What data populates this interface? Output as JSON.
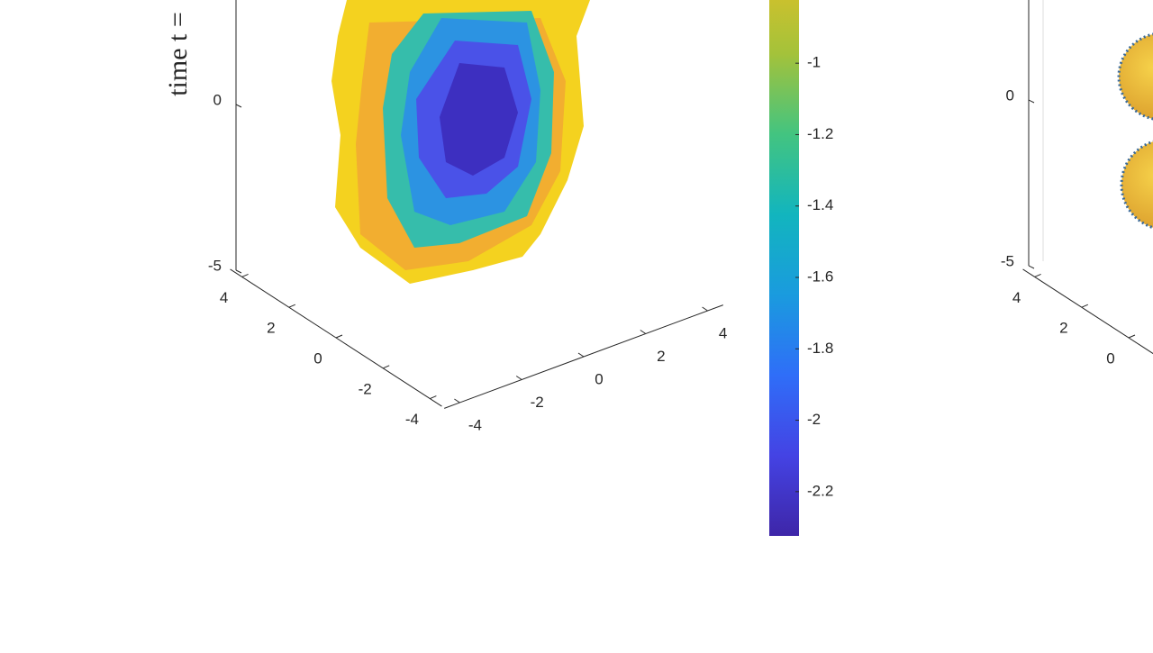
{
  "chart_data": [
    {
      "type": "trisurf3d",
      "zlabel": "time t =",
      "xlim": [
        -4.5,
        4.5
      ],
      "xticks": [
        -4,
        -2,
        0,
        2,
        4
      ],
      "ylim": [
        -4.5,
        4.5
      ],
      "yticks": [
        4,
        2,
        0,
        -2,
        -4
      ],
      "zlim": [
        -5,
        3.2
      ],
      "zticks": [
        0,
        -5
      ],
      "colorbar": {
        "clim": [
          -2.324,
          -0.823
        ],
        "ticks": [
          -1,
          -1.2,
          -1.4,
          -1.6,
          -1.8,
          -2,
          -2.2
        ]
      }
    },
    {
      "type": "sphere3d",
      "ylim": [
        -4.5,
        4.5
      ],
      "yticks": [
        4,
        2,
        0
      ],
      "zlim": [
        -5,
        3.2
      ],
      "zticks": [
        0,
        -5
      ]
    }
  ]
}
